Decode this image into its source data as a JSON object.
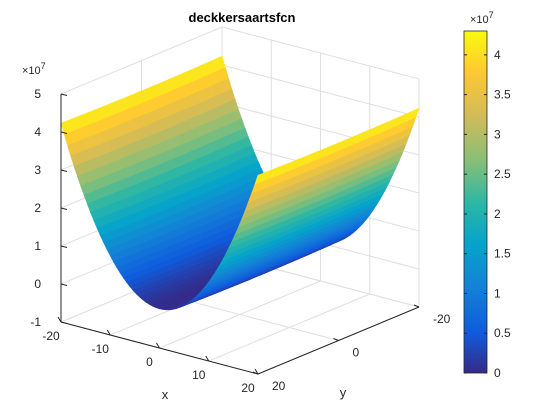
{
  "chart_data": {
    "type": "surface",
    "title": "deckkersaartsfcn",
    "xlabel": "x",
    "ylabel": "y",
    "zlabel": "",
    "function": "Deckkers-Aarts",
    "xlim": [
      -20,
      20
    ],
    "ylim": [
      -20,
      20
    ],
    "zlim": [
      -10000000,
      50000000
    ],
    "x_ticks": [
      "-20",
      "-10",
      "0",
      "10",
      "20"
    ],
    "y_ticks": [
      "20",
      "0",
      "-20"
    ],
    "z_ticks": [
      "-1",
      "0",
      "1",
      "2",
      "3",
      "4",
      "5"
    ],
    "z_exponent": "×10",
    "z_exponent_power": "7",
    "surface_samples": {
      "x": [
        -20,
        0,
        20
      ],
      "y": [
        -20,
        0,
        20
      ],
      "z_at_y0": [
        42000000.0,
        0,
        42000000.0
      ]
    },
    "colorbar": {
      "colormap": "parula",
      "range": [
        0,
        43000000
      ],
      "ticks": [
        "0",
        "0.5",
        "1",
        "1.5",
        "2",
        "2.5",
        "3",
        "3.5",
        "4"
      ],
      "exponent": "×10",
      "exponent_power": "7"
    },
    "grid": true
  }
}
